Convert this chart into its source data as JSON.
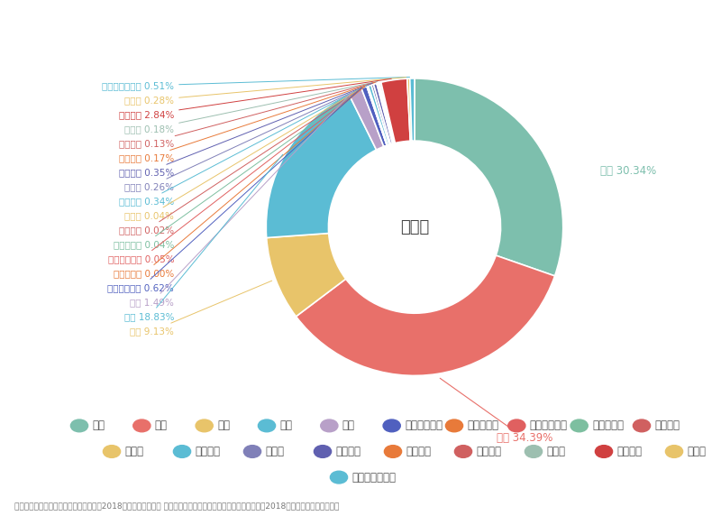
{
  "labels": [
    "韓国",
    "台湾",
    "香港",
    "中国",
    "タイ",
    "シンガポール",
    "マレーシア",
    "インドネシア",
    "フィリピン",
    "ベトナム",
    "インド",
    "イギリス",
    "ドイツ",
    "フランス",
    "イタリア",
    "スペイン",
    "ロシア",
    "アメリカ",
    "カナダ",
    "オーストラリア"
  ],
  "values": [
    30.34,
    34.39,
    9.13,
    18.83,
    1.49,
    0.62,
    0.0,
    0.05,
    0.04,
    0.02,
    0.04,
    0.34,
    0.26,
    0.35,
    0.17,
    0.13,
    0.18,
    2.84,
    0.28,
    0.51
  ],
  "colors": [
    "#7dbfad",
    "#e8706a",
    "#e8c46a",
    "#5bbcd4",
    "#b8a0c8",
    "#5060bf",
    "#e87a3a",
    "#e06060",
    "#7dbfa0",
    "#d06060",
    "#e8c46a",
    "#5bbcd4",
    "#8080b8",
    "#6060b0",
    "#e87a3a",
    "#d06060",
    "#9dbfb0",
    "#d04040",
    "#e8c46a",
    "#5bbcd4"
  ],
  "label_colors": {
    "韓国": "#7dbfad",
    "台湾": "#e8706a",
    "香港": "#e8c46a",
    "中国": "#5bbcd4",
    "タイ": "#b8a0c8",
    "シンガポール": "#5060bf",
    "マレーシア": "#e87a3a",
    "インドネシア": "#e06060",
    "フィリピン": "#7dbfa0",
    "ベトナム": "#d06060",
    "インド": "#e8c46a",
    "イギリス": "#5bbcd4",
    "ドイツ": "#8080b8",
    "フランス": "#6060b0",
    "イタリア": "#e87a3a",
    "スペイン": "#d06060",
    "ロシア": "#9dbfb0",
    "アメリカ": "#d04040",
    "カナダ": "#e8c46a",
    "オーストラリア": "#5bbcd4"
  },
  "label_texts": {
    "韓国": "韓国 30.34%",
    "台湾": "台湾 34.39%",
    "香港": "香港 9.13%",
    "中国": "中国 18.83%",
    "タイ": "タイ 1.49%",
    "シンガポール": "シンガポール 0.62%",
    "マレーシア": "マレーシア 0.00%",
    "インドネシア": "インドネシア 0.05%",
    "フィリピン": "フィリピン 0.04%",
    "ベトナム": "ベトナム 0.02%",
    "インド": "インド 0.04%",
    "イギリス": "イギリス 0.34%",
    "ドイツ": "ドイツ 0.26%",
    "フランス": "フランス 0.35%",
    "イタリア": "イタリア 0.17%",
    "スペイン": "スペイン 0.13%",
    "ロシア": "ロシア 0.18%",
    "アメリカ": "アメリカ 2.84%",
    "カナダ": "カナダ 0.28%",
    "オーストラリア": "オーストラリア 0.51%"
  },
  "center_text": "沖縄県",
  "footnote": "調査方法：「訪日外国人消費動向調査（2018年）国籍・地域別 都道府県別訪問率」および「訪日外客数統計（2018年）」より訪日ラボ推計",
  "legend_row1": [
    "韓国",
    "台湾",
    "香港",
    "中国",
    "タイ",
    "シンガポール",
    "マレーシア",
    "インドネシア",
    "フィリピン",
    "ベトナム"
  ],
  "legend_row2": [
    "インド",
    "イギリス",
    "ドイツ",
    "フランス",
    "イタリア",
    "スペイン",
    "ロシア",
    "アメリカ",
    "カナダ"
  ],
  "legend_row3": [
    "オーストラリア"
  ],
  "left_labels_order": [
    "オーストラリア",
    "カナダ",
    "アメリカ",
    "ロシア",
    "スペイン",
    "イタリア",
    "フランス",
    "ドイツ",
    "イギリス",
    "インド",
    "ベトナム",
    "フィリピン",
    "インドネシア",
    "マレーシア",
    "シンガポール",
    "タイ",
    "中国",
    "香港"
  ]
}
